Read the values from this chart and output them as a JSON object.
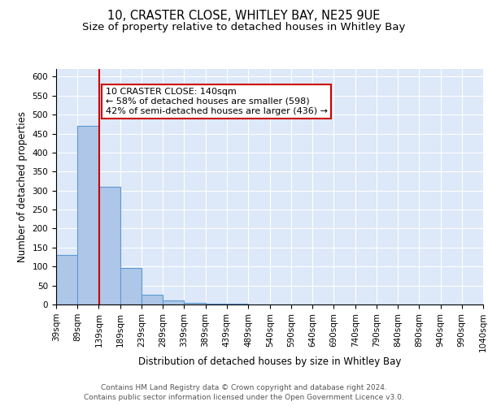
{
  "title1": "10, CRASTER CLOSE, WHITLEY BAY, NE25 9UE",
  "title2": "Size of property relative to detached houses in Whitley Bay",
  "xlabel": "Distribution of detached houses by size in Whitley Bay",
  "ylabel": "Number of detached properties",
  "bin_edges": [
    39,
    89,
    139,
    189,
    239,
    289,
    339,
    389,
    439,
    489,
    540,
    590,
    640,
    690,
    740,
    790,
    840,
    890,
    940,
    990,
    1040
  ],
  "bar_heights": [
    130,
    470,
    310,
    97,
    25,
    10,
    5,
    2,
    2,
    1,
    0,
    0,
    0,
    0,
    0,
    0,
    0,
    0,
    0,
    0
  ],
  "bar_color": "#aec6e8",
  "bar_edge_color": "#5b9bd5",
  "bar_edge_width": 0.8,
  "background_color": "#dde8f8",
  "grid_color": "#ffffff",
  "red_line_x": 140,
  "red_line_color": "#cc0000",
  "ylim": [
    0,
    620
  ],
  "yticks": [
    0,
    50,
    100,
    150,
    200,
    250,
    300,
    350,
    400,
    450,
    500,
    550,
    600
  ],
  "annotation_text": "10 CRASTER CLOSE: 140sqm\n← 58% of detached houses are smaller (598)\n42% of semi-detached houses are larger (436) →",
  "annotation_box_color": "white",
  "annotation_box_edge_color": "#cc0000",
  "footer_text": "Contains HM Land Registry data © Crown copyright and database right 2024.\nContains public sector information licensed under the Open Government Licence v3.0.",
  "title1_fontsize": 10.5,
  "title2_fontsize": 9.5,
  "axis_label_fontsize": 8.5,
  "tick_fontsize": 7.5,
  "annotation_fontsize": 8,
  "footer_fontsize": 6.5
}
